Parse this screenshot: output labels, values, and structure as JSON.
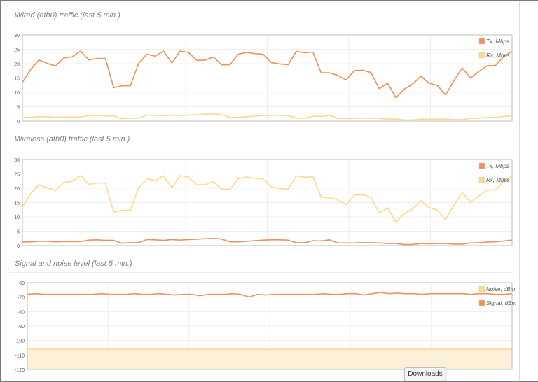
{
  "downloads_label": "Downloads",
  "chart_data": [
    {
      "type": "line",
      "title": "Wired (eth0) traffic (last 5 min.)",
      "ylim": [
        0,
        30
      ],
      "yticks": [
        0,
        5,
        10,
        15,
        20,
        25,
        30
      ],
      "grid": true,
      "legend_position": "top-right",
      "series": [
        {
          "name": "Tx, Mbps",
          "color": "#f0905a",
          "values": [
            13.5,
            18,
            21.3,
            20.1,
            19.2,
            22,
            22.4,
            24.4,
            21.3,
            21.8,
            21.8,
            11.6,
            12.3,
            12.3,
            20.1,
            23.3,
            22.6,
            24.4,
            20.2,
            24.4,
            23.9,
            21.2,
            21.2,
            22.3,
            19.6,
            19.6,
            23.3,
            23.9,
            23.5,
            23.3,
            20.4,
            19.9,
            19.6,
            24.3,
            23.8,
            24,
            16.8,
            16.8,
            15.9,
            14.3,
            17.6,
            17.7,
            16.9,
            11.3,
            13.2,
            8.1,
            11.1,
            12.8,
            15.6,
            13.2,
            12.4,
            9.1,
            14.1,
            18.5,
            15,
            17.3,
            19.3,
            19.4,
            22.5,
            24.3
          ]
        },
        {
          "name": "Rx, Mbps",
          "color": "#fbd98e",
          "values": [
            1.2,
            1.3,
            1.5,
            1.5,
            1.3,
            1.4,
            1.4,
            1.4,
            1.9,
            2,
            1.8,
            1.8,
            0.8,
            1,
            1,
            2.1,
            2,
            1.8,
            2.1,
            1.9,
            2.1,
            2.2,
            2.4,
            2.5,
            2.3,
            1.3,
            1.3,
            1.5,
            1.7,
            1.9,
            2,
            2,
            1.9,
            1,
            1,
            1.7,
            1.6,
            2,
            0.9,
            0.9,
            0.9,
            1,
            1,
            0.9,
            0.7,
            0.7,
            0.4,
            0.4,
            0.7,
            0.6,
            0.7,
            0.7,
            0.5,
            0.5,
            0.9,
            1,
            1.2,
            1.3,
            1.6,
            1.9
          ]
        }
      ]
    },
    {
      "type": "line",
      "title": "Wireless (ath0) traffic (last 5 min.)",
      "ylim": [
        0,
        30
      ],
      "yticks": [
        0,
        5,
        10,
        15,
        20,
        25,
        30
      ],
      "grid": true,
      "legend_position": "top-right",
      "series": [
        {
          "name": "Tx, Mbps",
          "color": "#f0905a",
          "values": [
            1.2,
            1.3,
            1.5,
            1.5,
            1.3,
            1.4,
            1.4,
            1.4,
            1.9,
            2,
            1.8,
            1.8,
            0.8,
            1,
            1,
            2.1,
            2,
            1.8,
            2.1,
            1.9,
            2.1,
            2.2,
            2.4,
            2.5,
            2.3,
            1.3,
            1.3,
            1.5,
            1.7,
            1.9,
            2,
            2,
            1.9,
            1,
            1,
            1.7,
            1.6,
            2,
            0.9,
            0.9,
            0.9,
            1,
            1,
            0.9,
            0.7,
            0.7,
            0.4,
            0.4,
            0.7,
            0.6,
            0.7,
            0.7,
            0.5,
            0.5,
            0.9,
            1,
            1.2,
            1.3,
            1.6,
            1.9
          ]
        },
        {
          "name": "Rx, Mbps",
          "color": "#fbd98e",
          "values": [
            13.5,
            18,
            21.3,
            20.1,
            19.2,
            22,
            22.4,
            24.4,
            21.3,
            21.8,
            21.8,
            11.6,
            12.3,
            12.3,
            20.1,
            23.3,
            22.6,
            24.4,
            20.2,
            24.4,
            23.9,
            21.2,
            21.2,
            22.3,
            19.6,
            19.6,
            23.3,
            23.9,
            23.5,
            23.3,
            20.4,
            19.9,
            19.6,
            24.3,
            23.8,
            24,
            16.8,
            16.8,
            15.9,
            14.3,
            17.6,
            17.7,
            16.9,
            11.3,
            13.2,
            8.1,
            11.1,
            12.8,
            15.6,
            13.2,
            12.4,
            9.1,
            14.1,
            18.5,
            15,
            17.3,
            19.3,
            19.4,
            22.5,
            24.3
          ]
        }
      ]
    },
    {
      "type": "line",
      "title": "Signal and noise level (last 5 min.)",
      "ylim": [
        -120,
        -60
      ],
      "yticks": [
        -120,
        -110,
        -100,
        -90,
        -80,
        -70,
        -60
      ],
      "grid": true,
      "legend_position": "top-right",
      "series": [
        {
          "name": "Noise, dBm",
          "color": "#fbd98e",
          "fill": "#fdf0d8",
          "values": [
            -106,
            -106,
            -106,
            -106,
            -106,
            -106,
            -106,
            -106,
            -106,
            -106,
            -106,
            -106,
            -106,
            -106,
            -106,
            -106,
            -106,
            -106,
            -106,
            -106,
            -106,
            -106,
            -106,
            -106,
            -106,
            -106,
            -106,
            -106,
            -106,
            -106,
            -106,
            -106,
            -106,
            -106,
            -106,
            -106,
            -106,
            -106,
            -106,
            -106,
            -106,
            -106,
            -106,
            -106,
            -106,
            -106,
            -106,
            -106,
            -106,
            -106,
            -106,
            -106,
            -106,
            -106,
            -106,
            -106,
            -106,
            -106,
            -106,
            -106
          ]
        },
        {
          "name": "Signal, dBm",
          "color": "#f0905a",
          "values": [
            -68,
            -67.6,
            -68.1,
            -68.1,
            -68.1,
            -68.1,
            -68.1,
            -68.1,
            -68.1,
            -67.6,
            -68.1,
            -68.1,
            -68.1,
            -67.6,
            -68.1,
            -68.1,
            -67.6,
            -68.1,
            -68.5,
            -68.1,
            -68.1,
            -69,
            -68.1,
            -68.1,
            -68.1,
            -67.6,
            -68.1,
            -69.9,
            -68.1,
            -68.5,
            -68.1,
            -68.1,
            -68.1,
            -68.1,
            -68.1,
            -68.1,
            -67.6,
            -68.1,
            -68.1,
            -67.6,
            -67.6,
            -68.5,
            -67.6,
            -66.8,
            -67.6,
            -67.2,
            -67.6,
            -67.6,
            -68.1,
            -67.6,
            -67.6,
            -67.6,
            -67.6,
            -67.6,
            -68.1,
            -67.6,
            -67.6,
            -68.1,
            -68.1,
            -67.6
          ]
        }
      ]
    }
  ]
}
